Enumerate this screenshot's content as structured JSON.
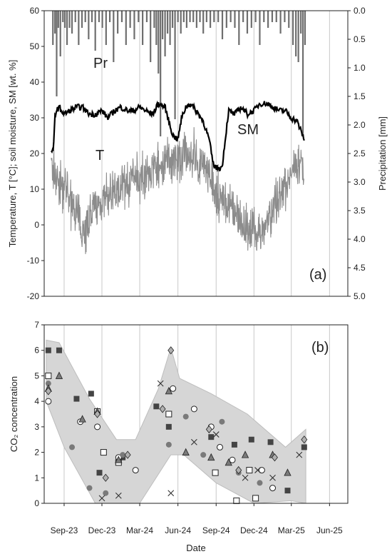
{
  "colors": {
    "axis": "#222222",
    "grid": "#c8c8c8",
    "precip": "#6e6e6e",
    "temp": "#8c8c8c",
    "sm": "#000000",
    "band": "#d6d6d6",
    "band_stroke": "#bdbdbd",
    "marker_dark": "#444444",
    "marker_mid": "#7a7a7a",
    "marker_light": "#b0b0b0"
  },
  "chart_data": [
    {
      "panel": "(a)",
      "type": "line",
      "ylabel": "Temperature, T [°C]; soil moisture, SM [wt. %]",
      "y2label": "Precipitation [mm]",
      "ylim": [
        -20,
        60
      ],
      "yticks": [
        -20,
        -10,
        0,
        10,
        20,
        30,
        40,
        50,
        60
      ],
      "y2lim": [
        0.0,
        5.0
      ],
      "y2ticks": [
        "0.0",
        "0.5",
        "1.0",
        "1.5",
        "2.0",
        "2.5",
        "3.0",
        "3.5",
        "4.0",
        "4.5",
        "5.0"
      ],
      "y2_inverted": true,
      "xlim": [
        "2023-07-15",
        "2025-07-15"
      ],
      "grid": "vertical",
      "labels": {
        "pr": "Pr",
        "sm": "SM",
        "t": "T"
      },
      "series": [
        {
          "key": "precip",
          "style": "bars",
          "x": [
            "2023-08-05",
            "2023-08-10",
            "2023-08-14",
            "2023-08-18",
            "2023-08-23",
            "2023-08-29",
            "2023-09-03",
            "2023-09-08",
            "2023-09-14",
            "2023-09-20",
            "2023-09-28",
            "2023-10-06",
            "2023-10-14",
            "2023-10-22",
            "2023-10-30",
            "2023-11-07",
            "2023-11-15",
            "2023-11-24",
            "2023-12-02",
            "2023-12-11",
            "2023-12-20",
            "2023-12-29",
            "2024-01-08",
            "2024-01-18",
            "2024-01-28",
            "2024-02-07",
            "2024-02-17",
            "2024-02-27",
            "2024-03-08",
            "2024-03-18",
            "2024-03-27",
            "2024-04-05",
            "2024-04-10",
            "2024-04-15",
            "2024-04-20",
            "2024-04-25",
            "2024-05-01",
            "2024-05-07",
            "2024-05-13",
            "2024-05-19",
            "2024-05-25",
            "2024-06-01",
            "2024-06-08",
            "2024-06-15",
            "2024-06-22",
            "2024-06-30",
            "2024-07-08",
            "2024-07-16",
            "2024-07-24",
            "2024-08-01",
            "2024-08-09",
            "2024-08-18",
            "2024-08-27",
            "2024-09-06",
            "2024-09-16",
            "2024-09-26",
            "2024-10-06",
            "2024-10-16",
            "2024-10-26",
            "2024-11-05",
            "2024-11-15",
            "2024-11-25",
            "2024-12-05",
            "2024-12-15",
            "2024-12-25",
            "2025-01-04",
            "2025-01-14",
            "2025-01-24",
            "2025-02-03",
            "2025-02-13",
            "2025-02-23",
            "2025-03-05",
            "2025-03-12",
            "2025-03-18",
            "2025-03-24",
            "2025-03-29",
            "2025-04-03"
          ],
          "values": [
            0.6,
            0.4,
            1.5,
            0.3,
            0.8,
            0.2,
            0.3,
            0.6,
            0.3,
            0.4,
            0.2,
            0.6,
            0.3,
            0.2,
            0.5,
            0.2,
            0.7,
            0.2,
            0.3,
            0.6,
            0.2,
            0.9,
            0.4,
            0.2,
            0.6,
            0.3,
            0.5,
            0.2,
            0.6,
            0.2,
            0.9,
            0.3,
            0.6,
            1.1,
            2.2,
            0.5,
            0.8,
            0.4,
            0.6,
            0.3,
            1.9,
            0.2,
            0.4,
            0.2,
            0.3,
            0.2,
            0.2,
            0.3,
            0.2,
            0.4,
            0.2,
            0.3,
            0.2,
            0.2,
            0.5,
            0.3,
            0.2,
            0.3,
            0.6,
            0.2,
            0.4,
            0.3,
            0.2,
            0.6,
            0.2,
            0.3,
            0.2,
            0.2,
            0.4,
            0.2,
            0.3,
            0.6,
            0.8,
            0.9,
            0.4,
            2.2,
            0.6
          ]
        },
        {
          "key": "temp",
          "style": "line",
          "x": [
            "2023-08-01",
            "2023-08-20",
            "2023-09-10",
            "2023-10-01",
            "2023-10-20",
            "2023-11-10",
            "2023-12-01",
            "2023-12-20",
            "2024-01-10",
            "2024-01-31",
            "2024-02-20",
            "2024-03-10",
            "2024-04-01",
            "2024-04-20",
            "2024-05-10",
            "2024-06-01",
            "2024-06-20",
            "2024-07-10",
            "2024-08-01",
            "2024-08-20",
            "2024-09-10",
            "2024-10-01",
            "2024-10-20",
            "2024-11-10",
            "2024-12-01",
            "2024-12-20",
            "2025-01-10",
            "2025-01-31",
            "2025-02-20",
            "2025-03-10",
            "2025-04-01"
          ],
          "values": [
            16,
            12,
            8,
            3,
            -2,
            4,
            6,
            8,
            10,
            12,
            14,
            13,
            15,
            17,
            18,
            19,
            20,
            19,
            17,
            12,
            8,
            5,
            2,
            0,
            -2,
            -1,
            3,
            7,
            12,
            17,
            16
          ]
        },
        {
          "key": "sm",
          "style": "line",
          "x": [
            "2023-08-01",
            "2023-08-06",
            "2023-08-10",
            "2023-08-14",
            "2023-08-20",
            "2023-09-01",
            "2023-09-15",
            "2023-10-01",
            "2023-10-15",
            "2023-11-01",
            "2023-11-15",
            "2023-12-01",
            "2023-12-15",
            "2024-01-01",
            "2024-01-15",
            "2024-02-01",
            "2024-02-15",
            "2024-03-01",
            "2024-03-15",
            "2024-04-01",
            "2024-04-15",
            "2024-05-01",
            "2024-05-10",
            "2024-05-20",
            "2024-06-01",
            "2024-06-10",
            "2024-06-20",
            "2024-07-01",
            "2024-07-15",
            "2024-08-01",
            "2024-08-15",
            "2024-08-25",
            "2024-09-01",
            "2024-09-15",
            "2024-10-01",
            "2024-10-15",
            "2024-11-01",
            "2024-11-15",
            "2024-12-01",
            "2024-12-15",
            "2025-01-01",
            "2025-01-15",
            "2025-02-01",
            "2025-02-15",
            "2025-03-01",
            "2025-03-15",
            "2025-04-01"
          ],
          "values": [
            21,
            20,
            31,
            32,
            33,
            31,
            32,
            33,
            33,
            31,
            31,
            32,
            30,
            32,
            33,
            32,
            32,
            33,
            32,
            31,
            34,
            33,
            29,
            25,
            24,
            30,
            33,
            34,
            32,
            29,
            24,
            17,
            16,
            16,
            32,
            31,
            33,
            31,
            32,
            34,
            34,
            33,
            32,
            32,
            30,
            29,
            24
          ]
        }
      ]
    },
    {
      "panel": "(b)",
      "type": "scatter",
      "xlabel": "Date",
      "ylabel": "CO₂ concentration",
      "ylim": [
        0,
        7
      ],
      "yticks": [
        0,
        1,
        2,
        3,
        4,
        5,
        6,
        7
      ],
      "xlim": [
        "2023-07-15",
        "2025-07-15"
      ],
      "xticks": [
        "Sep-23",
        "Dec-23",
        "Mar-24",
        "Jun-24",
        "Sep-24",
        "Dec-24",
        "Mar-25",
        "Jun-25"
      ],
      "xtick_dates": [
        "2023-09-01",
        "2023-12-01",
        "2024-03-01",
        "2024-06-01",
        "2024-09-01",
        "2024-12-01",
        "2025-03-01",
        "2025-06-01"
      ],
      "grid": "vertical",
      "range_band": {
        "x": [
          "2023-07-20",
          "2023-08-20",
          "2023-11-01",
          "2024-01-05",
          "2024-02-20",
          "2024-04-15",
          "2024-05-15",
          "2024-06-05",
          "2024-08-20",
          "2024-11-15",
          "2025-02-15",
          "2025-04-05",
          "2025-04-05",
          "2025-03-01",
          "2024-12-01",
          "2024-09-01",
          "2024-06-15",
          "2024-05-15",
          "2024-03-01",
          "2024-01-01",
          "2023-11-15",
          "2023-09-01",
          "2023-07-20"
        ],
        "values": [
          6.4,
          6.3,
          4.1,
          2.5,
          2.5,
          4.5,
          6.1,
          4.9,
          4.3,
          3.5,
          2.2,
          2.9,
          0.0,
          0.1,
          0.0,
          0.8,
          1.9,
          1.9,
          0.0,
          0.0,
          0.0,
          2.2,
          4.0
        ]
      },
      "series": [
        {
          "marker": "square-dark",
          "x": [
            "2023-07-25",
            "2023-08-20",
            "2023-10-01",
            "2023-11-05",
            "2023-11-25",
            "2024-01-20",
            "2024-04-10",
            "2024-05-10",
            "2024-08-20",
            "2024-10-15",
            "2024-11-25",
            "2025-01-10",
            "2025-02-20",
            "2025-04-01"
          ],
          "values": [
            6.0,
            6.0,
            4.1,
            4.3,
            1.2,
            1.8,
            3.8,
            3.0,
            2.6,
            2.3,
            2.5,
            2.4,
            0.5,
            2.2
          ]
        },
        {
          "marker": "square-open",
          "x": [
            "2023-07-25",
            "2023-11-20",
            "2023-12-05",
            "2024-01-10",
            "2024-05-10",
            "2024-08-30",
            "2024-10-20",
            "2024-11-20",
            "2024-12-05"
          ],
          "values": [
            5.0,
            3.6,
            2.0,
            1.6,
            3.5,
            1.2,
            0.1,
            1.3,
            0.2
          ]
        },
        {
          "marker": "circle-open",
          "x": [
            "2023-07-25",
            "2023-10-10",
            "2023-11-20",
            "2024-01-10",
            "2024-02-20",
            "2024-05-20",
            "2024-07-10",
            "2024-08-20",
            "2024-09-10",
            "2024-10-10",
            "2024-12-20",
            "2025-01-15"
          ],
          "values": [
            4.0,
            3.2,
            3.0,
            1.8,
            1.3,
            4.5,
            3.7,
            3.0,
            2.2,
            1.7,
            1.3,
            0.6
          ]
        },
        {
          "marker": "circle-filled",
          "x": [
            "2023-07-25",
            "2023-09-20",
            "2023-11-01",
            "2023-12-10",
            "2024-01-20",
            "2024-05-10",
            "2024-06-20",
            "2024-08-01",
            "2024-09-15",
            "2024-10-25",
            "2024-12-15"
          ],
          "values": [
            4.7,
            2.2,
            0.6,
            0.4,
            1.9,
            2.3,
            3.4,
            1.9,
            3.2,
            1.2,
            0.8
          ]
        },
        {
          "marker": "triangle",
          "x": [
            "2023-07-25",
            "2023-08-20",
            "2023-10-15",
            "2023-11-20",
            "2024-01-10",
            "2024-05-10",
            "2024-06-20",
            "2024-08-20",
            "2024-10-01",
            "2024-11-10",
            "2025-01-15",
            "2025-02-20"
          ],
          "values": [
            4.5,
            5.0,
            3.3,
            3.6,
            1.7,
            4.4,
            2.0,
            1.8,
            1.6,
            1.9,
            1.9,
            1.2
          ]
        },
        {
          "marker": "diamond",
          "x": [
            "2023-07-25",
            "2023-11-20",
            "2023-12-10",
            "2024-02-01",
            "2024-04-25",
            "2024-05-15",
            "2024-08-15",
            "2024-10-25",
            "2025-01-20",
            "2025-04-01"
          ],
          "values": [
            4.4,
            3.5,
            1.0,
            1.9,
            3.7,
            6.0,
            2.9,
            1.3,
            1.8,
            2.5
          ]
        },
        {
          "marker": "cross",
          "x": [
            "2023-12-01",
            "2024-01-10",
            "2024-04-20",
            "2024-05-15",
            "2024-07-10",
            "2024-09-01",
            "2024-11-10",
            "2024-12-10",
            "2025-01-15",
            "2025-03-20"
          ],
          "values": [
            0.2,
            0.3,
            4.7,
            0.4,
            2.4,
            2.7,
            1.0,
            1.3,
            1.0,
            1.9
          ]
        }
      ]
    }
  ]
}
